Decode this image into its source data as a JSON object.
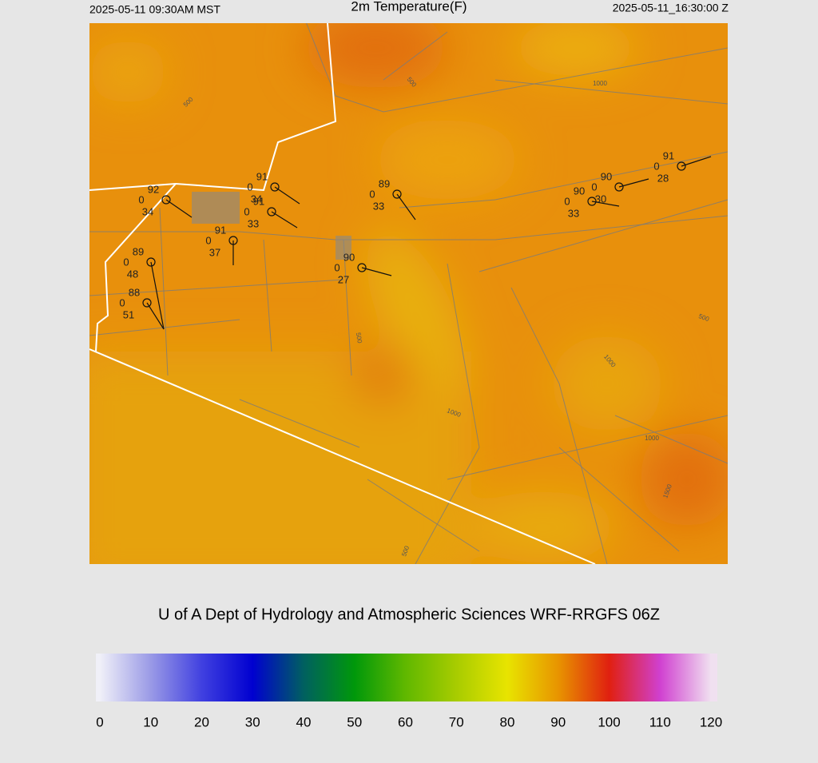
{
  "header": {
    "left": "2025-05-11 09:30AM MST",
    "title": "2m Temperature(F)",
    "right": "2025-05-11_16:30:00 Z"
  },
  "stations": [
    {
      "temp": 92,
      "wind": 0,
      "dew": 34
    },
    {
      "temp": 91,
      "wind": 0,
      "dew": 34
    },
    {
      "temp": 91,
      "wind": 0,
      "dew": 33
    },
    {
      "temp": 91,
      "wind": 0,
      "dew": 37
    },
    {
      "temp": 89,
      "wind": 0,
      "dew": 48
    },
    {
      "temp": 88,
      "wind": 0,
      "dew": 51
    },
    {
      "temp": 90,
      "wind": 0,
      "dew": 27
    },
    {
      "temp": 89,
      "wind": 0,
      "dew": 33
    },
    {
      "temp": 90,
      "wind": 0,
      "dew": 33
    },
    {
      "temp": 90,
      "wind": 0,
      "dew": 30
    },
    {
      "temp": 91,
      "wind": 0,
      "dew": 28
    }
  ],
  "contour_labels": [
    "500",
    "500",
    "1000",
    "500",
    "500",
    "1000",
    "1000",
    "1000",
    "500",
    "1500"
  ],
  "credit": "U of A Dept of Hydrology and Atmospheric Sciences WRF-RRGFS 06Z",
  "colorbar": {
    "lim": [
      0,
      120
    ],
    "ticks": [
      0,
      10,
      20,
      30,
      40,
      50,
      60,
      70,
      80,
      90,
      100,
      110,
      120
    ],
    "colors": [
      "#f0f0f8",
      "#9a9ae6",
      "#4040e0",
      "#0000d0",
      "#006060",
      "#00980a",
      "#60b800",
      "#a8cc00",
      "#e8e400",
      "#e89400",
      "#e02010",
      "#d040d0",
      "#f0e0f0"
    ]
  }
}
